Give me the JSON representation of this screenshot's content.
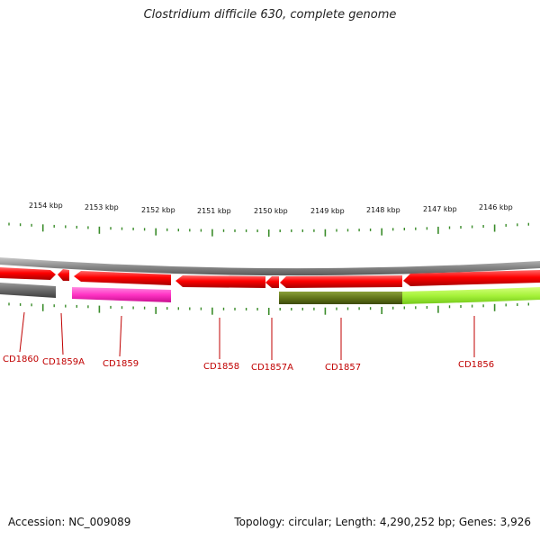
{
  "title": "Clostridium difficile 630, complete genome",
  "footer": {
    "accession": "Accession: NC_009089",
    "summary": "Topology: circular; Length: 4,290,252 bp; Genes: 3,926"
  },
  "scale": {
    "labels": [
      "2154 kbp",
      "2153 kbp",
      "2152 kbp",
      "2151 kbp",
      "2150 kbp",
      "2149 kbp",
      "2148 kbp",
      "2147 kbp",
      "2146 kbp"
    ]
  },
  "genes": [
    {
      "name": "CD1860",
      "strand": "forward",
      "color": "#ff0000"
    },
    {
      "name": "CD1859A",
      "strand": "reverse",
      "color": "#ff0000"
    },
    {
      "name": "CD1859",
      "strand": "reverse",
      "color": "#ff0000"
    },
    {
      "name": "CD1858",
      "strand": "reverse",
      "color": "#ff0000"
    },
    {
      "name": "CD1857A",
      "strand": "reverse",
      "color": "#ff0000"
    },
    {
      "name": "CD1857",
      "strand": "reverse",
      "color": "#ff0000"
    },
    {
      "name": "CD1856",
      "strand": "reverse",
      "color": "#ff0000"
    }
  ],
  "colors": {
    "backbone": "#8a8a8a",
    "cds_red": "#ff0000",
    "function_gray": "#6e6e6e",
    "function_magenta": "#ff3fc8",
    "function_olive": "#667a1e",
    "function_lime": "#a6f23a",
    "tick_green": "#3a8c2a",
    "label_red": "#c00000"
  }
}
